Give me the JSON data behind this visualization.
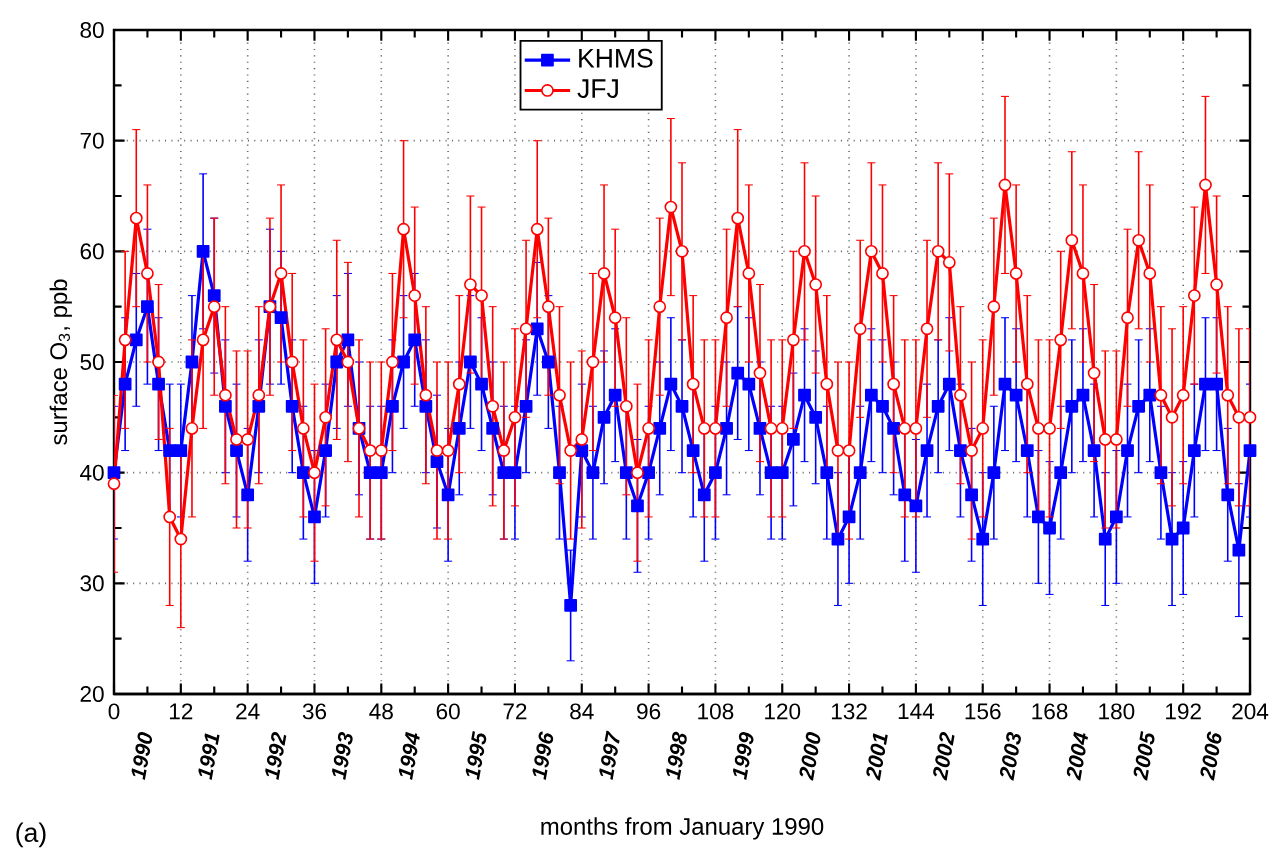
{
  "chart_data": {
    "type": "line",
    "xlabel": "months from January 1990",
    "ylabel": "surface O$_{3}$, ppb",
    "annotations": [
      "(a)"
    ],
    "x": [
      0,
      2,
      4,
      6,
      8,
      10,
      12,
      14,
      16,
      18,
      20,
      22,
      24,
      26,
      28,
      30,
      32,
      34,
      36,
      38,
      40,
      42,
      44,
      46,
      48,
      50,
      52,
      54,
      56,
      58,
      60,
      62,
      64,
      66,
      68,
      70,
      72,
      74,
      76,
      78,
      80,
      82,
      84,
      86,
      88,
      90,
      92,
      94,
      96,
      98,
      100,
      102,
      104,
      106,
      108,
      110,
      112,
      114,
      116,
      118,
      120,
      122,
      124,
      126,
      128,
      130,
      132,
      134,
      136,
      138,
      140,
      142,
      144,
      146,
      148,
      150,
      152,
      154,
      156,
      158,
      160,
      162,
      164,
      166,
      168,
      170,
      172,
      174,
      176,
      178,
      180,
      182,
      184,
      186,
      188,
      190,
      192,
      194,
      196,
      198,
      200,
      202,
      204
    ],
    "series": [
      {
        "name": "KHMS",
        "color": "#0000ff",
        "marker": "square",
        "values": [
          40,
          48,
          52,
          55,
          48,
          42,
          42,
          50,
          60,
          56,
          46,
          42,
          38,
          46,
          55,
          54,
          46,
          40,
          36,
          42,
          50,
          52,
          44,
          40,
          40,
          46,
          50,
          52,
          46,
          41,
          38,
          44,
          50,
          48,
          44,
          40,
          40,
          46,
          53,
          50,
          40,
          28,
          42,
          40,
          45,
          47,
          40,
          37,
          40,
          44,
          48,
          46,
          42,
          38,
          40,
          44,
          49,
          48,
          44,
          40,
          40,
          43,
          47,
          45,
          40,
          34,
          36,
          40,
          47,
          46,
          44,
          38,
          37,
          42,
          46,
          48,
          42,
          38,
          34,
          40,
          48,
          47,
          42,
          36,
          35,
          40,
          46,
          47,
          42,
          34,
          36,
          42,
          46,
          47,
          40,
          34,
          35,
          42,
          48,
          48,
          38,
          33,
          42
        ],
        "errors": [
          6,
          6,
          6,
          7,
          6,
          6,
          6,
          6,
          7,
          7,
          6,
          6,
          6,
          6,
          7,
          6,
          6,
          6,
          6,
          6,
          6,
          6,
          6,
          6,
          6,
          6,
          6,
          6,
          6,
          6,
          6,
          6,
          6,
          6,
          6,
          6,
          6,
          6,
          6,
          6,
          6,
          5,
          6,
          6,
          6,
          6,
          6,
          6,
          6,
          6,
          6,
          6,
          6,
          6,
          6,
          6,
          6,
          6,
          6,
          6,
          6,
          6,
          6,
          6,
          6,
          6,
          6,
          6,
          6,
          6,
          6,
          6,
          6,
          6,
          6,
          6,
          6,
          6,
          6,
          6,
          6,
          6,
          6,
          6,
          6,
          6,
          6,
          6,
          6,
          6,
          6,
          6,
          6,
          6,
          6,
          6,
          6,
          6,
          6,
          6,
          6,
          6,
          6
        ]
      },
      {
        "name": "JFJ",
        "color": "#ff0000",
        "marker": "circle",
        "values": [
          39,
          52,
          63,
          58,
          50,
          36,
          34,
          44,
          52,
          55,
          47,
          43,
          43,
          47,
          55,
          58,
          50,
          44,
          40,
          45,
          52,
          50,
          44,
          42,
          42,
          50,
          62,
          56,
          47,
          42,
          42,
          48,
          57,
          56,
          46,
          42,
          45,
          53,
          62,
          55,
          47,
          42,
          43,
          50,
          58,
          54,
          46,
          40,
          44,
          55,
          64,
          60,
          48,
          44,
          44,
          54,
          63,
          58,
          49,
          44,
          44,
          52,
          60,
          57,
          48,
          42,
          42,
          53,
          60,
          58,
          48,
          44,
          44,
          53,
          60,
          59,
          47,
          42,
          44,
          55,
          66,
          58,
          48,
          44,
          44,
          52,
          61,
          58,
          49,
          43,
          43,
          54,
          61,
          58,
          47,
          45,
          47,
          56,
          66,
          57,
          47,
          45,
          45
        ],
        "errors": [
          8,
          8,
          8,
          8,
          7,
          8,
          8,
          8,
          8,
          8,
          8,
          8,
          8,
          8,
          8,
          8,
          8,
          8,
          8,
          8,
          9,
          9,
          8,
          8,
          8,
          8,
          8,
          8,
          8,
          8,
          8,
          8,
          8,
          8,
          9,
          8,
          8,
          8,
          8,
          8,
          8,
          8,
          8,
          8,
          8,
          8,
          8,
          8,
          8,
          8,
          8,
          8,
          8,
          8,
          8,
          8,
          8,
          8,
          8,
          8,
          8,
          8,
          8,
          8,
          8,
          8,
          8,
          8,
          8,
          8,
          8,
          8,
          8,
          8,
          8,
          8,
          8,
          8,
          8,
          8,
          8,
          8,
          8,
          8,
          8,
          8,
          8,
          8,
          8,
          8,
          8,
          8,
          8,
          8,
          8,
          8,
          8,
          8,
          8,
          8,
          8,
          8,
          8
        ]
      }
    ],
    "xlim": [
      0,
      204
    ],
    "xticks": [
      0,
      12,
      24,
      36,
      48,
      60,
      72,
      84,
      96,
      108,
      120,
      132,
      144,
      156,
      168,
      180,
      192,
      204
    ],
    "x2lim": [
      1989.5,
      2006.5
    ],
    "x2ticks": [
      1990,
      1991,
      1992,
      1993,
      1994,
      1995,
      1996,
      1997,
      1998,
      1999,
      2000,
      2001,
      2002,
      2003,
      2004,
      2005,
      2006
    ],
    "ylim": [
      20,
      80
    ],
    "yticks": [
      20,
      30,
      40,
      50,
      60,
      70,
      80
    ],
    "grid": true,
    "legend": "top",
    "line_style": "solid"
  }
}
